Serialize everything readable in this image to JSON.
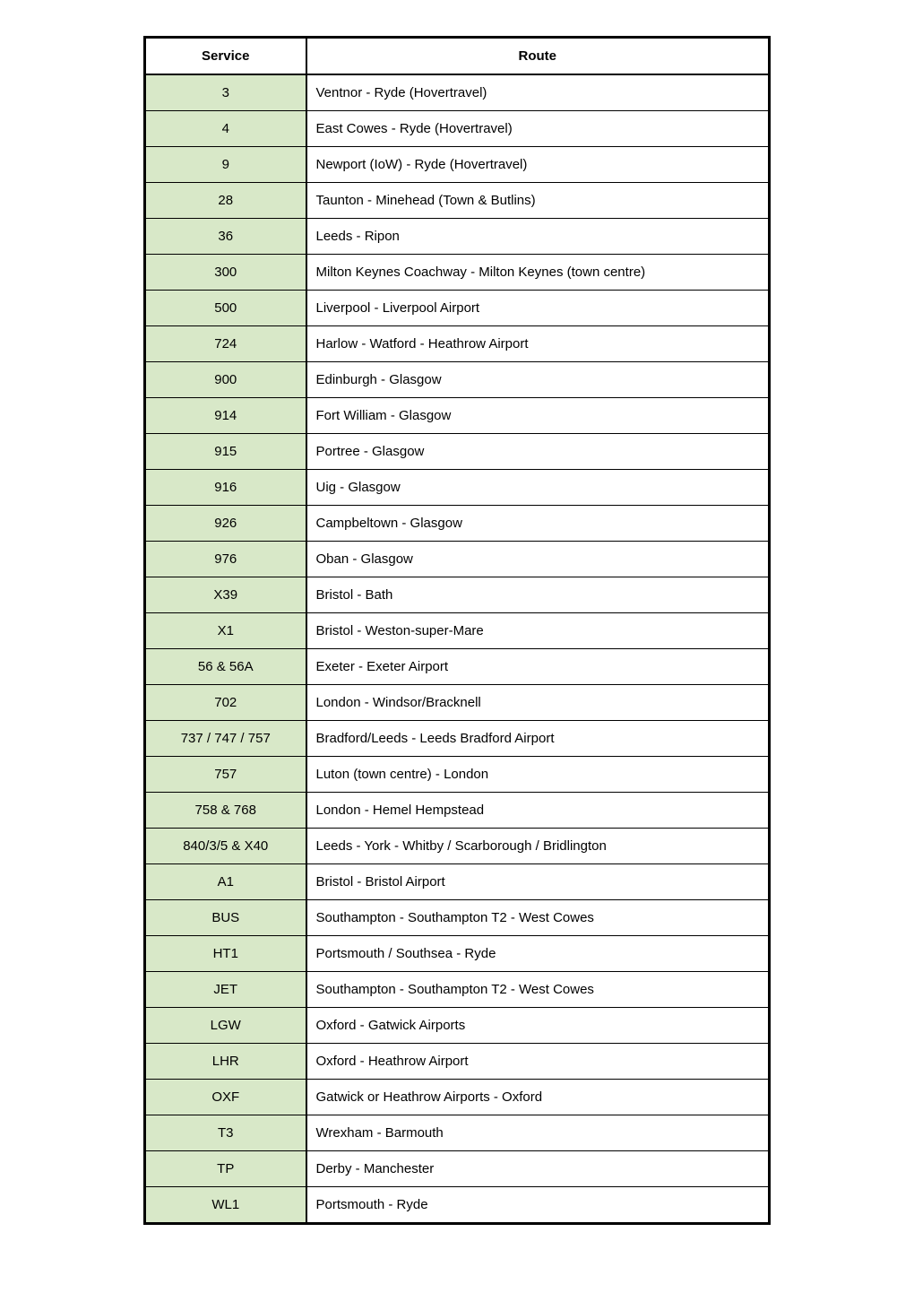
{
  "table": {
    "headers": {
      "service": "Service",
      "route": "Route"
    },
    "rows": [
      {
        "service": "3",
        "route": "Ventnor - Ryde (Hovertravel)"
      },
      {
        "service": "4",
        "route": "East Cowes - Ryde (Hovertravel)"
      },
      {
        "service": "9",
        "route": "Newport (IoW) - Ryde (Hovertravel)"
      },
      {
        "service": "28",
        "route": "Taunton - Minehead (Town & Butlins)"
      },
      {
        "service": "36",
        "route": "Leeds - Ripon"
      },
      {
        "service": "300",
        "route": "Milton Keynes Coachway - Milton Keynes (town centre)"
      },
      {
        "service": "500",
        "route": "Liverpool - Liverpool Airport"
      },
      {
        "service": "724",
        "route": "Harlow - Watford - Heathrow Airport"
      },
      {
        "service": "900",
        "route": "Edinburgh - Glasgow"
      },
      {
        "service": "914",
        "route": "Fort William - Glasgow"
      },
      {
        "service": "915",
        "route": "Portree - Glasgow"
      },
      {
        "service": "916",
        "route": "Uig - Glasgow"
      },
      {
        "service": "926",
        "route": "Campbeltown - Glasgow"
      },
      {
        "service": "976",
        "route": "Oban - Glasgow"
      },
      {
        "service": "X39",
        "route": "Bristol - Bath"
      },
      {
        "service": "X1",
        "route": "Bristol - Weston-super-Mare"
      },
      {
        "service": "56 & 56A",
        "route": "Exeter - Exeter Airport"
      },
      {
        "service": "702",
        "route": "London - Windsor/Bracknell"
      },
      {
        "service": "737 / 747 / 757",
        "route": "Bradford/Leeds - Leeds Bradford Airport"
      },
      {
        "service": "757",
        "route": "Luton (town centre) - London"
      },
      {
        "service": "758 & 768",
        "route": "London - Hemel Hempstead"
      },
      {
        "service": "840/3/5 & X40",
        "route": "Leeds - York - Whitby / Scarborough / Bridlington"
      },
      {
        "service": "A1",
        "route": "Bristol - Bristol Airport"
      },
      {
        "service": "BUS",
        "route": "Southampton - Southampton T2 - West Cowes"
      },
      {
        "service": "HT1",
        "route": "Portsmouth / Southsea - Ryde"
      },
      {
        "service": "JET",
        "route": "Southampton - Southampton T2 - West Cowes"
      },
      {
        "service": "LGW",
        "route": "Oxford - Gatwick Airports"
      },
      {
        "service": "LHR",
        "route": "Oxford - Heathrow Airport"
      },
      {
        "service": "OXF",
        "route": "Gatwick or Heathrow Airports - Oxford"
      },
      {
        "service": "T3",
        "route": "Wrexham - Barmouth"
      },
      {
        "service": "TP",
        "route": "Derby - Manchester"
      },
      {
        "service": "WL1",
        "route": "Portsmouth - Ryde"
      }
    ],
    "styling": {
      "service_bg": "#d8e8c8",
      "route_bg": "#ffffff",
      "border_color": "#000000",
      "outer_border_width": 3,
      "vertical_border_width": 2,
      "row_border_width": 1,
      "font_family": "Arial",
      "font_size": 15,
      "service_col_width": 180
    }
  }
}
